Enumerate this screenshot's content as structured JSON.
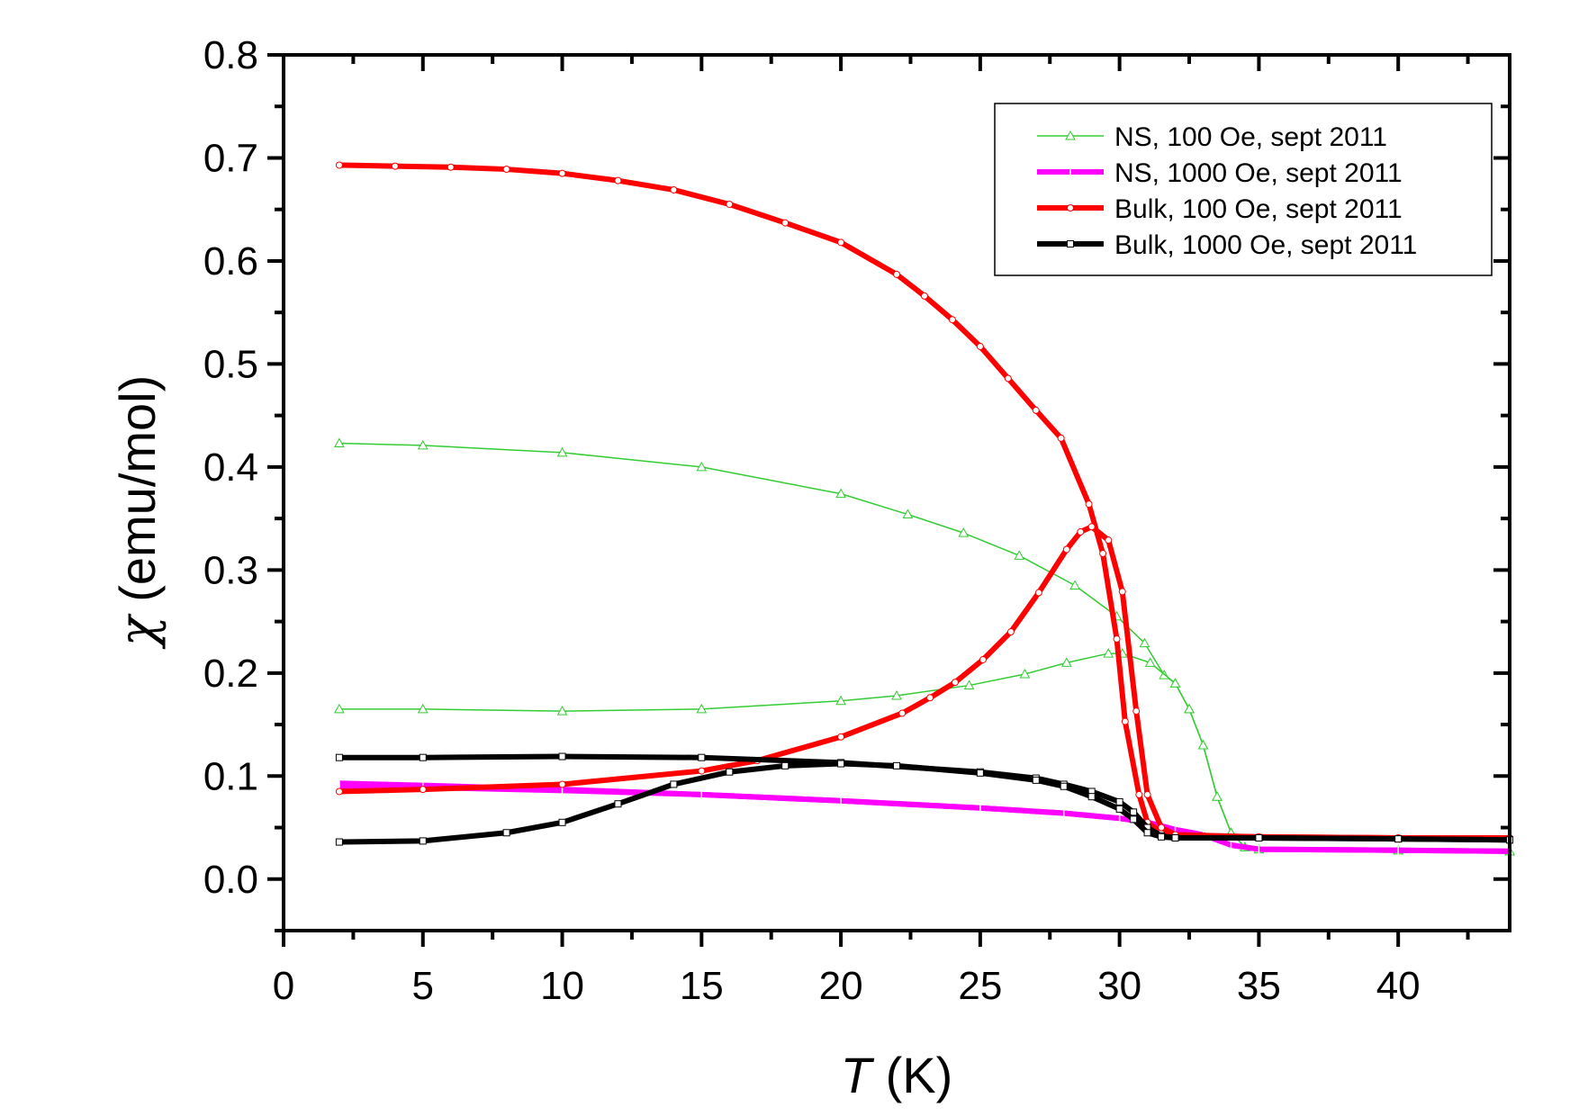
{
  "chart_data": {
    "type": "line",
    "title": "",
    "xlabel": "(K)",
    "xlabel_symbol": "T",
    "ylabel": "(emu/mol)",
    "ylabel_symbol": "χ",
    "xlim": [
      0,
      44
    ],
    "ylim": [
      -0.05,
      0.8
    ],
    "xticks": [
      0,
      5,
      10,
      15,
      20,
      25,
      30,
      35,
      40
    ],
    "xtick_labels": [
      "0",
      "5",
      "10",
      "15",
      "20",
      "25",
      "30",
      "35",
      "40"
    ],
    "yticks": [
      0.0,
      0.1,
      0.2,
      0.3,
      0.4,
      0.5,
      0.6,
      0.7,
      0.8
    ],
    "ytick_labels": [
      "0.0",
      "0.1",
      "0.2",
      "0.3",
      "0.4",
      "0.5",
      "0.6",
      "0.7",
      "0.8"
    ],
    "grid": false,
    "legend_placement": "top-right",
    "series": [
      {
        "name": "NS, 100 Oe, sept 2011",
        "color": "#33cc33",
        "marker": "triangle",
        "curves": [
          {
            "x": [
              2,
              5,
              10,
              15,
              20,
              22.4,
              24.4,
              26.4,
              28.4,
              29.9,
              30.9,
              31.6,
              32,
              32.5,
              33,
              33.5,
              34,
              34.5,
              35,
              40,
              44
            ],
            "y": [
              0.423,
              0.421,
              0.414,
              0.4,
              0.374,
              0.354,
              0.336,
              0.314,
              0.285,
              0.255,
              0.229,
              0.198,
              0.19,
              0.165,
              0.13,
              0.08,
              0.045,
              0.031,
              0.029,
              0.028,
              0.027
            ]
          },
          {
            "x": [
              2,
              5,
              10,
              15,
              20,
              22,
              24.6,
              26.6,
              28.1,
              29.6,
              30.1,
              31.1,
              32,
              32.5,
              33,
              33.5,
              34,
              34.5,
              35,
              40,
              44
            ],
            "y": [
              0.165,
              0.165,
              0.163,
              0.165,
              0.173,
              0.178,
              0.188,
              0.199,
              0.21,
              0.219,
              0.219,
              0.21,
              0.19,
              0.165,
              0.13,
              0.08,
              0.045,
              0.031,
              0.029,
              0.028,
              0.027
            ]
          }
        ]
      },
      {
        "name": "NS, 1000 Oe, sept 2011",
        "color": "#ff00ff",
        "marker": "cross",
        "curves": [
          {
            "x": [
              2,
              5,
              10,
              15,
              20,
              25,
              28,
              30,
              31,
              32,
              33,
              34,
              35,
              40,
              44
            ],
            "y": [
              0.093,
              0.091,
              0.087,
              0.082,
              0.076,
              0.069,
              0.064,
              0.059,
              0.055,
              0.048,
              0.043,
              0.033,
              0.029,
              0.028,
              0.027
            ]
          },
          {
            "x": [
              2,
              5,
              10,
              15,
              20,
              25,
              28,
              30,
              31,
              32,
              33,
              34,
              35,
              40,
              44
            ],
            "y": [
              0.088,
              0.089,
              0.086,
              0.082,
              0.076,
              0.069,
              0.064,
              0.059,
              0.055,
              0.048,
              0.043,
              0.033,
              0.029,
              0.028,
              0.027
            ]
          }
        ]
      },
      {
        "name": "Bulk, 100 Oe, sept 2011",
        "color": "#ff0000",
        "marker": "circle",
        "curves": [
          {
            "x": [
              2,
              4,
              6,
              8,
              10,
              12,
              14,
              16,
              18,
              20,
              22,
              23,
              24,
              25,
              26,
              27,
              27.9,
              28.9,
              29.4,
              29.9,
              30.2,
              30.7,
              31,
              31.5,
              32,
              35,
              40,
              44
            ],
            "y": [
              0.693,
              0.692,
              0.691,
              0.689,
              0.685,
              0.678,
              0.669,
              0.655,
              0.637,
              0.618,
              0.587,
              0.566,
              0.543,
              0.517,
              0.486,
              0.455,
              0.428,
              0.364,
              0.316,
              0.233,
              0.153,
              0.082,
              0.055,
              0.045,
              0.042,
              0.041,
              0.04,
              0.04
            ]
          },
          {
            "x": [
              2,
              5,
              10,
              15,
              17,
              20,
              22.2,
              23.2,
              24.1,
              25.1,
              26.1,
              27.1,
              28.1,
              28.6,
              29,
              29.6,
              30.1,
              30.6,
              31,
              31.5,
              32,
              35,
              40,
              44
            ],
            "y": [
              0.085,
              0.087,
              0.092,
              0.105,
              0.115,
              0.138,
              0.161,
              0.176,
              0.191,
              0.213,
              0.24,
              0.278,
              0.32,
              0.337,
              0.342,
              0.329,
              0.279,
              0.163,
              0.082,
              0.05,
              0.043,
              0.041,
              0.04,
              0.04
            ]
          }
        ]
      },
      {
        "name": "Bulk, 1000 Oe, sept 2011",
        "color": "#000000",
        "marker": "square",
        "curves": [
          {
            "x": [
              2,
              5,
              10,
              15,
              20,
              25,
              27,
              28,
              29,
              30,
              30.5,
              31,
              31.5,
              32,
              35,
              40,
              44
            ],
            "y": [
              0.118,
              0.118,
              0.119,
              0.118,
              0.113,
              0.104,
              0.098,
              0.092,
              0.085,
              0.075,
              0.065,
              0.05,
              0.042,
              0.04,
              0.04,
              0.039,
              0.038
            ]
          },
          {
            "x": [
              2,
              5,
              8,
              10,
              12,
              14,
              16,
              18,
              20,
              22,
              25,
              27,
              28,
              29,
              30,
              30.5,
              31,
              31.5,
              32,
              35,
              40,
              44
            ],
            "y": [
              0.036,
              0.037,
              0.045,
              0.055,
              0.073,
              0.092,
              0.104,
              0.11,
              0.112,
              0.11,
              0.103,
              0.096,
              0.09,
              0.08,
              0.068,
              0.058,
              0.045,
              0.041,
              0.04,
              0.04,
              0.039,
              0.038
            ]
          }
        ]
      }
    ]
  }
}
